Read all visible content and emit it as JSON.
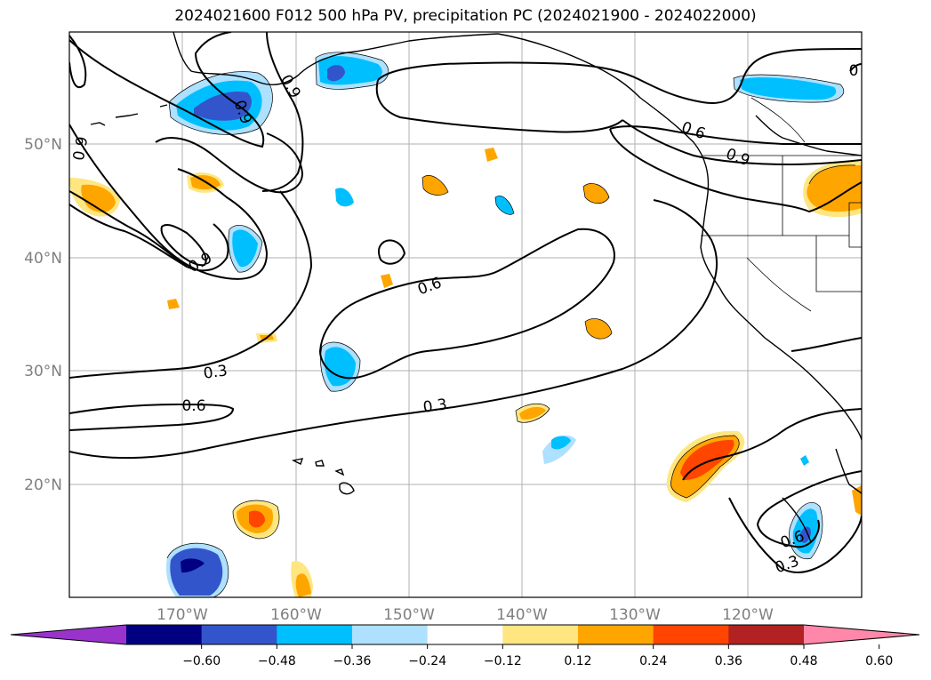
{
  "title": "2024021600 F012 500 hPa PV, precipitation PC (2024021900 - 2024022000)",
  "lat_ticks": [
    "50°N",
    "40°N",
    "30°N",
    "20°N"
  ],
  "lon_ticks": [
    "170°W",
    "160°W",
    "150°W",
    "140°W",
    "130°W",
    "120°W"
  ],
  "colorbar": {
    "ticks": [
      "−0.60",
      "−0.48",
      "−0.36",
      "−0.24",
      "−0.12",
      "0.12",
      "0.24",
      "0.36",
      "0.48",
      "0.60"
    ],
    "colors": [
      "#9933cc",
      "#000080",
      "#3355cc",
      "#00bfff",
      "#aee0ff",
      "#ffffff",
      "#ffe680",
      "#ffa500",
      "#ff4500",
      "#b22222",
      "#ff88aa"
    ]
  },
  "contour_labels": {
    "a": "0.9",
    "b": "0.9",
    "c": "0.9",
    "d": "0.9",
    "e": "0.6",
    "f": "0.9",
    "g": "0.6",
    "h": "0.3",
    "i": "0.6",
    "j": "0.3",
    "k": "0.6",
    "l": "0.3",
    "m": "0"
  }
}
